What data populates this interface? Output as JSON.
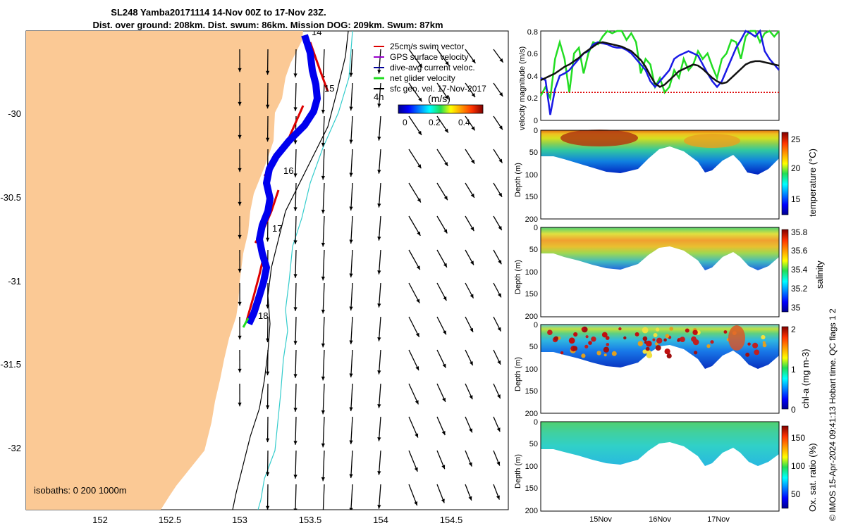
{
  "titles": {
    "line1": "SL248 Yamba20171114 14-Nov 00Z to 17-Nov 23Z.",
    "line2": "Dist. over ground: 208km. Dist. swum: 86km. Mission DOG: 209km. Swum: 87km"
  },
  "credit": "© IMOS 15-Apr-2024 09:41:13 Hobart time. QC flags 1  2",
  "chart_data": [
    {
      "type": "map",
      "xticks": [
        "152",
        "152.5",
        "153",
        "153.5",
        "154",
        "154.5"
      ],
      "xtick_values": [
        152,
        152.5,
        153,
        153.5,
        154,
        154.5
      ],
      "yticks": [
        "-30",
        "-30.5",
        "-31",
        "-31.5",
        "-32"
      ],
      "ytick_values": [
        -30,
        -30.5,
        -31,
        -31.5,
        -32
      ],
      "xlim": [
        151.52,
        154.9
      ],
      "ylim": [
        -32.37,
        -29.52
      ],
      "legend": [
        {
          "label": "25cm/s swim vector",
          "color": "#dd0000"
        },
        {
          "label": "GPS surface velocity",
          "color": "#9900cc"
        },
        {
          "label": "dive-avg current veloc.",
          "color": "#000099"
        },
        {
          "label": "net glider velocity",
          "color": "#22dd22"
        },
        {
          "label": "sfc geo. vel. 17-Nov-2017",
          "color": "#000000"
        }
      ],
      "colorbar": {
        "label": "(m/s)",
        "ticks": [
          "0",
          "0.2",
          "0.4"
        ],
        "range": [
          0,
          0.5
        ]
      },
      "day_labels": [
        "14",
        "15",
        "16",
        "17",
        "18"
      ],
      "extra_label": "4h",
      "isobaths_label": "isobaths: 0   200  1000m",
      "colors": {
        "land": "#fbc995",
        "track": "#0000ee",
        "swim": "#dd0000",
        "isobath200": "#000000",
        "isobath1000": "#33cccc"
      }
    },
    {
      "type": "line",
      "ylabel": "velocity magnitude (m/s)",
      "ylim": [
        0,
        0.8
      ],
      "yticks": [
        "0",
        "0.2",
        "0.4",
        "0.6",
        "0.8"
      ],
      "x_range_days": [
        14.0,
        18.0
      ],
      "series": [
        {
          "color": "#22dd22",
          "values": [
            0.22,
            0.3,
            0.2,
            0.55,
            0.7,
            0.55,
            0.25,
            0.6,
            0.65,
            0.42,
            0.6,
            0.7,
            0.68,
            0.75,
            0.8,
            0.78,
            0.8,
            0.8,
            0.72,
            0.78,
            0.7,
            0.42,
            0.55,
            0.5,
            0.3,
            0.38,
            0.25,
            0.3,
            0.45,
            0.38,
            0.55,
            0.45,
            0.5,
            0.62,
            0.55,
            0.6,
            0.48,
            0.38,
            0.55,
            0.6,
            0.72,
            0.7,
            0.55,
            0.75,
            0.8,
            0.8,
            0.7,
            0.78,
            0.8,
            0.75,
            0.8
          ]
        },
        {
          "color": "#1a1ae6",
          "values": [
            0.38,
            0.36,
            0.05,
            0.28,
            0.4,
            0.42,
            0.45,
            0.5,
            0.55,
            0.6,
            0.62,
            0.68,
            0.7,
            0.69,
            0.68,
            0.66,
            0.65,
            0.65,
            0.63,
            0.6,
            0.55,
            0.5,
            0.45,
            0.35,
            0.3,
            0.35,
            0.4,
            0.45,
            0.55,
            0.58,
            0.6,
            0.62,
            0.6,
            0.58,
            0.5,
            0.42,
            0.35,
            0.3,
            0.35,
            0.45,
            0.55,
            0.65,
            0.72,
            0.8,
            0.78,
            0.75,
            0.8,
            0.62,
            0.55,
            0.5,
            0.45
          ]
        },
        {
          "color": "#111111",
          "values": [
            0.36,
            0.38,
            0.4,
            0.42,
            0.45,
            0.48,
            0.5,
            0.53,
            0.56,
            0.6,
            0.63,
            0.66,
            0.69,
            0.7,
            0.69,
            0.68,
            0.67,
            0.66,
            0.64,
            0.62,
            0.58,
            0.54,
            0.48,
            0.4,
            0.33,
            0.3,
            0.32,
            0.36,
            0.4,
            0.44,
            0.46,
            0.48,
            0.5,
            0.49,
            0.46,
            0.42,
            0.38,
            0.35,
            0.33,
            0.34,
            0.38,
            0.42,
            0.46,
            0.5,
            0.52,
            0.53,
            0.53,
            0.52,
            0.51,
            0.5,
            0.49
          ]
        },
        {
          "color": "#dd0000",
          "values": [
            0.25,
            0.25,
            0.25,
            0.25,
            0.25,
            0.25,
            0.25,
            0.25,
            0.25,
            0.25,
            0.25,
            0.25,
            0.25,
            0.25,
            0.25,
            0.25,
            0.25,
            0.25,
            0.25,
            0.25,
            0.25,
            0.25,
            0.25,
            0.25,
            0.25,
            0.25,
            0.25,
            0.25,
            0.25,
            0.25,
            0.25,
            0.25,
            0.25,
            0.25,
            0.25,
            0.25,
            0.25,
            0.25,
            0.25,
            0.25,
            0.25,
            0.25,
            0.25,
            0.25,
            0.25,
            0.25,
            0.25,
            0.25,
            0.25,
            0.25,
            0.25
          ]
        }
      ]
    },
    {
      "type": "heatmap",
      "ylabel": "Depth (m)",
      "yticks": [
        "0",
        "50",
        "100",
        "150",
        "200"
      ],
      "ylim": [
        200,
        0
      ],
      "colorbar": {
        "label": "temperature (°C)",
        "ticks": [
          "25",
          "20",
          "15"
        ],
        "range": [
          12,
          25.5
        ]
      },
      "bottom_depth_profile": [
        60,
        70,
        80,
        85,
        88,
        90,
        92,
        95,
        92,
        88,
        85,
        80,
        70,
        60,
        55,
        58,
        65,
        75,
        85,
        90,
        88,
        80,
        70,
        60,
        50,
        55,
        62,
        70,
        85,
        90,
        82,
        75,
        70,
        85,
        92,
        90,
        88,
        85
      ]
    },
    {
      "type": "heatmap",
      "ylabel": "Depth (m)",
      "yticks": [
        "0",
        "50",
        "100",
        "150",
        "200"
      ],
      "ylim": [
        200,
        0
      ],
      "colorbar": {
        "label": "salinity",
        "ticks": [
          "35.8",
          "35.6",
          "35.4",
          "35.2",
          "35"
        ],
        "range": [
          34.95,
          35.8
        ]
      }
    },
    {
      "type": "heatmap",
      "ylabel": "Depth (m)",
      "yticks": [
        "0",
        "50",
        "100",
        "150",
        "200"
      ],
      "ylim": [
        200,
        0
      ],
      "colorbar": {
        "label": "chl-a (mg m-3)",
        "ticks": [
          "2",
          "1",
          "0"
        ],
        "range": [
          0,
          2
        ]
      }
    },
    {
      "type": "heatmap",
      "ylabel": "Depth (m)",
      "yticks": [
        "0",
        "50",
        "100",
        "150",
        "200"
      ],
      "ylim": [
        200,
        0
      ],
      "colorbar": {
        "label": "Ox. sat. ratio (%)",
        "ticks": [
          "150",
          "100",
          "50"
        ],
        "range": [
          25,
          175
        ]
      },
      "xticks": [
        "15Nov",
        "16Nov",
        "17Nov"
      ]
    }
  ]
}
